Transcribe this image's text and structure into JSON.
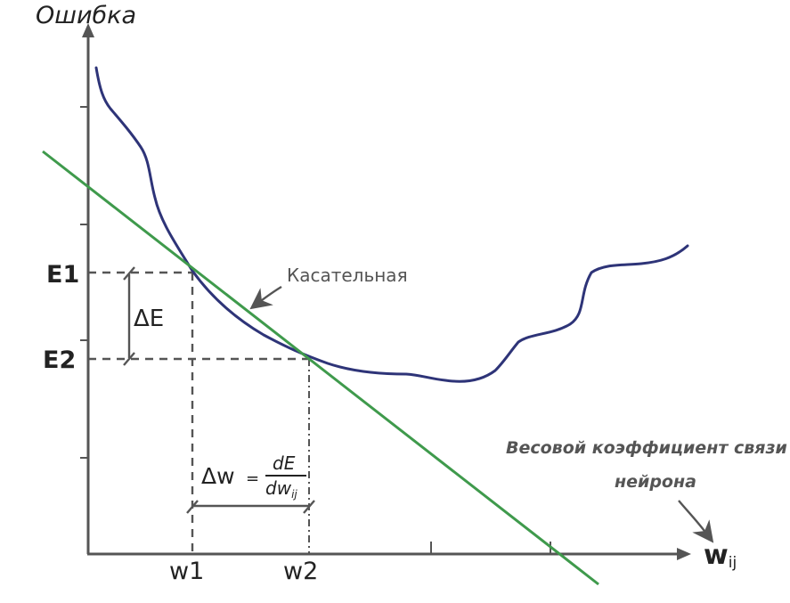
{
  "diagram": {
    "y_axis_label": "Ошибка",
    "x_axis_label": {
      "main": "w",
      "sub": "ij"
    },
    "e1_label": "E1",
    "e2_label": "E2",
    "w1_label": "w1",
    "w2_label": "w2",
    "delta_e_label": "ΔE",
    "tangent_label": "Касательная",
    "weight_note_line1": "Весовой коэффициент связи",
    "weight_note_line2": "нейрона",
    "formula": {
      "lhs": "Δw",
      "eq": "=",
      "numerator": "dE",
      "denominator_main": "dw",
      "denominator_sub": "ij"
    },
    "colors": {
      "error_curve": "#2e3478",
      "tangent_line": "#3f9a4c",
      "axes": "#555555",
      "text": "#222222",
      "annotation_text": "#555555"
    }
  }
}
